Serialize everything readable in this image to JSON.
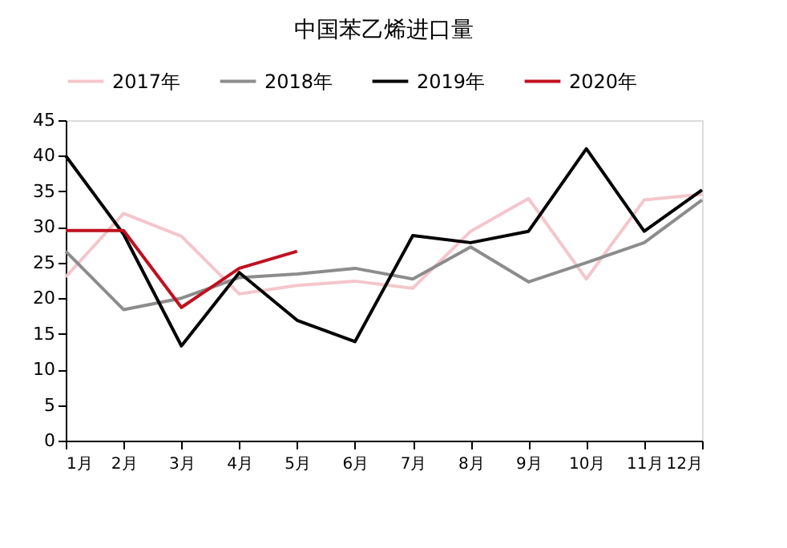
{
  "chart_data": {
    "type": "line",
    "title": "中国苯乙烯进口量",
    "categories": [
      "1月",
      "2月",
      "3月",
      "4月",
      "5月",
      "6月",
      "7月",
      "8月",
      "9月",
      "10月",
      "11月",
      "12月"
    ],
    "series": [
      {
        "name": "2017年",
        "color": "#f4c6cc",
        "values": [
          23,
          31.9,
          28.7,
          20.6,
          21.8,
          22.4,
          21.4,
          29.4,
          34,
          22.7,
          33.8,
          34.6
        ]
      },
      {
        "name": "2018年",
        "color": "#8c8c8c",
        "values": [
          26.6,
          18.4,
          20,
          22.9,
          23.4,
          24.2,
          22.7,
          27.2,
          22.3,
          25,
          27.8,
          33.8
        ]
      },
      {
        "name": "2019年",
        "color": "#000000",
        "values": [
          40,
          29,
          13.3,
          23.6,
          16.9,
          13.9,
          28.8,
          27.8,
          29.4,
          41,
          29.4,
          35.2
        ]
      },
      {
        "name": "2020年",
        "color": "#c0101f",
        "values": [
          29.5,
          29.5,
          18.7,
          24.2,
          26.6,
          null,
          null,
          null,
          null,
          null,
          null,
          null
        ]
      }
    ],
    "ylim": [
      0,
      45
    ],
    "yticks": [
      0,
      5,
      10,
      15,
      20,
      25,
      30,
      35,
      40,
      45
    ],
    "grid": false,
    "legend": "top",
    "marker": "none",
    "line_style": "solid"
  }
}
